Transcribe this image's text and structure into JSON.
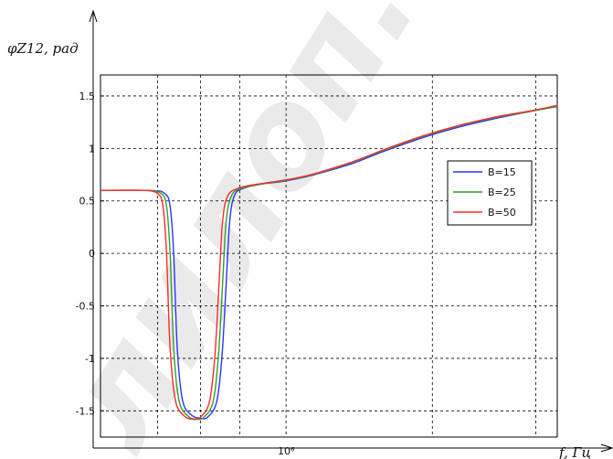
{
  "chart_data": {
    "type": "line",
    "ylabel": "φZ12, рад",
    "xlabel": "f, Гц",
    "x_scale": "log",
    "x_tick_label": "10⁶",
    "y_ticks": [
      "1.5",
      "1",
      "0.5",
      "0",
      "-0.5",
      "-1",
      "-1.5"
    ],
    "ylim": [
      -1.75,
      1.7
    ],
    "grid": true,
    "legend_position": "right",
    "watermark_text": "лилоп.",
    "series": [
      {
        "name": "B=15",
        "color": "#2b35ff",
        "points": [
          [
            0.0,
            0.6
          ],
          [
            0.14,
            0.6
          ],
          [
            0.18,
            0.57
          ],
          [
            0.195,
            0.45
          ],
          [
            0.205,
            0.0
          ],
          [
            0.215,
            -0.9
          ],
          [
            0.23,
            -1.4
          ],
          [
            0.255,
            -1.54
          ],
          [
            0.28,
            -1.57
          ],
          [
            0.3,
            -1.56
          ],
          [
            0.325,
            -1.42
          ],
          [
            0.34,
            -1.0
          ],
          [
            0.352,
            -0.3
          ],
          [
            0.362,
            0.3
          ],
          [
            0.375,
            0.55
          ],
          [
            0.4,
            0.62
          ],
          [
            0.45,
            0.66
          ],
          [
            0.5,
            0.68
          ],
          [
            0.55,
            0.71
          ],
          [
            0.6,
            0.75
          ],
          [
            0.7,
            0.85
          ],
          [
            0.8,
            0.98
          ],
          [
            0.9,
            1.1
          ],
          [
            1.0,
            1.2
          ],
          [
            1.1,
            1.28
          ],
          [
            1.2,
            1.35
          ],
          [
            1.28,
            1.4
          ]
        ]
      },
      {
        "name": "B=25",
        "color": "#2fa12f",
        "points": [
          [
            0.0,
            0.6
          ],
          [
            0.13,
            0.6
          ],
          [
            0.17,
            0.57
          ],
          [
            0.185,
            0.45
          ],
          [
            0.195,
            0.0
          ],
          [
            0.205,
            -0.9
          ],
          [
            0.22,
            -1.4
          ],
          [
            0.245,
            -1.55
          ],
          [
            0.27,
            -1.58
          ],
          [
            0.29,
            -1.56
          ],
          [
            0.315,
            -1.42
          ],
          [
            0.33,
            -1.0
          ],
          [
            0.342,
            -0.3
          ],
          [
            0.352,
            0.3
          ],
          [
            0.367,
            0.55
          ],
          [
            0.395,
            0.62
          ],
          [
            0.45,
            0.66
          ],
          [
            0.5,
            0.685
          ],
          [
            0.55,
            0.715
          ],
          [
            0.6,
            0.755
          ],
          [
            0.7,
            0.86
          ],
          [
            0.8,
            0.99
          ],
          [
            0.9,
            1.11
          ],
          [
            1.0,
            1.21
          ],
          [
            1.1,
            1.29
          ],
          [
            1.2,
            1.35
          ],
          [
            1.28,
            1.4
          ]
        ]
      },
      {
        "name": "B=50",
        "color": "#ff2a2a",
        "points": [
          [
            0.0,
            0.6
          ],
          [
            0.12,
            0.6
          ],
          [
            0.16,
            0.57
          ],
          [
            0.175,
            0.45
          ],
          [
            0.185,
            0.0
          ],
          [
            0.195,
            -0.9
          ],
          [
            0.21,
            -1.4
          ],
          [
            0.235,
            -1.55
          ],
          [
            0.26,
            -1.58
          ],
          [
            0.28,
            -1.56
          ],
          [
            0.305,
            -1.42
          ],
          [
            0.32,
            -1.0
          ],
          [
            0.332,
            -0.3
          ],
          [
            0.342,
            0.3
          ],
          [
            0.357,
            0.55
          ],
          [
            0.39,
            0.625
          ],
          [
            0.45,
            0.665
          ],
          [
            0.5,
            0.69
          ],
          [
            0.55,
            0.72
          ],
          [
            0.6,
            0.76
          ],
          [
            0.7,
            0.865
          ],
          [
            0.8,
            0.995
          ],
          [
            0.9,
            1.115
          ],
          [
            1.0,
            1.215
          ],
          [
            1.1,
            1.295
          ],
          [
            1.2,
            1.355
          ],
          [
            1.28,
            1.41
          ]
        ]
      }
    ]
  }
}
